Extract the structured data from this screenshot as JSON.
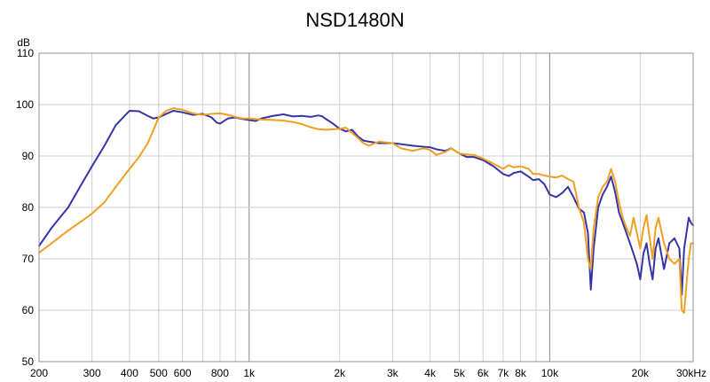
{
  "chart_data": {
    "type": "line",
    "title": "NSD1480N",
    "ylabel": "dB",
    "xlabel": "",
    "x_scale": "log",
    "xlim": [
      200,
      30000
    ],
    "ylim": [
      50,
      110
    ],
    "grid": true,
    "x_ticks": [
      {
        "value": 200,
        "label": "200"
      },
      {
        "value": 300,
        "label": "300"
      },
      {
        "value": 400,
        "label": "400"
      },
      {
        "value": 500,
        "label": "500"
      },
      {
        "value": 600,
        "label": "600"
      },
      {
        "value": 800,
        "label": "800"
      },
      {
        "value": 1000,
        "label": "1k"
      },
      {
        "value": 2000,
        "label": "2k"
      },
      {
        "value": 3000,
        "label": "3k"
      },
      {
        "value": 4000,
        "label": "4k"
      },
      {
        "value": 5000,
        "label": "5k"
      },
      {
        "value": 6000,
        "label": "6k"
      },
      {
        "value": 7000,
        "label": "7k"
      },
      {
        "value": 8000,
        "label": "8k"
      },
      {
        "value": 10000,
        "label": "10k"
      },
      {
        "value": 20000,
        "label": "20k"
      },
      {
        "value": 30000,
        "label": "30kHz"
      }
    ],
    "y_ticks": [
      50,
      60,
      70,
      80,
      90,
      100,
      110
    ],
    "series": [
      {
        "color": "#3535a8",
        "points": [
          [
            200,
            72.5
          ],
          [
            220,
            76
          ],
          [
            250,
            80
          ],
          [
            280,
            85
          ],
          [
            300,
            88
          ],
          [
            330,
            92
          ],
          [
            360,
            96
          ],
          [
            400,
            98.8
          ],
          [
            430,
            98.7
          ],
          [
            460,
            97.8
          ],
          [
            480,
            97.3
          ],
          [
            500,
            97.5
          ],
          [
            530,
            98.2
          ],
          [
            560,
            98.8
          ],
          [
            600,
            98.5
          ],
          [
            650,
            98
          ],
          [
            700,
            98.2
          ],
          [
            750,
            97.5
          ],
          [
            780,
            96.5
          ],
          [
            800,
            96.3
          ],
          [
            850,
            97.3
          ],
          [
            900,
            97.5
          ],
          [
            950,
            97.2
          ],
          [
            1000,
            97
          ],
          [
            1050,
            96.8
          ],
          [
            1100,
            97.3
          ],
          [
            1200,
            97.8
          ],
          [
            1300,
            98.1
          ],
          [
            1400,
            97.7
          ],
          [
            1500,
            97.8
          ],
          [
            1600,
            97.6
          ],
          [
            1700,
            97.9
          ],
          [
            1750,
            97.7
          ],
          [
            1800,
            97.2
          ],
          [
            1900,
            96.3
          ],
          [
            2000,
            95.3
          ],
          [
            2100,
            94.8
          ],
          [
            2200,
            95.1
          ],
          [
            2300,
            93.8
          ],
          [
            2400,
            93
          ],
          [
            2500,
            92.8
          ],
          [
            2700,
            92.5
          ],
          [
            3000,
            92.5
          ],
          [
            3200,
            92.3
          ],
          [
            3500,
            92
          ],
          [
            3800,
            91.8
          ],
          [
            4000,
            91.7
          ],
          [
            4200,
            91.3
          ],
          [
            4500,
            91
          ],
          [
            4700,
            91.5
          ],
          [
            5000,
            90.5
          ],
          [
            5300,
            89.8
          ],
          [
            5600,
            89.8
          ],
          [
            6000,
            89.2
          ],
          [
            6500,
            88
          ],
          [
            7000,
            86.5
          ],
          [
            7300,
            86.1
          ],
          [
            7600,
            86.7
          ],
          [
            8000,
            87
          ],
          [
            8500,
            86
          ],
          [
            8800,
            85.3
          ],
          [
            9200,
            85.5
          ],
          [
            9600,
            84.5
          ],
          [
            10000,
            82.5
          ],
          [
            10500,
            82
          ],
          [
            11000,
            82.8
          ],
          [
            11500,
            84
          ],
          [
            12000,
            82
          ],
          [
            12500,
            79.8
          ],
          [
            13000,
            79
          ],
          [
            13400,
            75
          ],
          [
            13700,
            64
          ],
          [
            14000,
            72
          ],
          [
            14500,
            80
          ],
          [
            15000,
            82.5
          ],
          [
            15500,
            84
          ],
          [
            16000,
            86
          ],
          [
            16500,
            83
          ],
          [
            17000,
            79
          ],
          [
            17500,
            77
          ],
          [
            18000,
            75
          ],
          [
            18500,
            73
          ],
          [
            19000,
            71
          ],
          [
            19500,
            69
          ],
          [
            20000,
            66
          ],
          [
            20500,
            71
          ],
          [
            21000,
            73
          ],
          [
            21500,
            69
          ],
          [
            22000,
            66
          ],
          [
            22500,
            72
          ],
          [
            23000,
            74
          ],
          [
            24000,
            68
          ],
          [
            25000,
            73
          ],
          [
            26000,
            74
          ],
          [
            27000,
            72
          ],
          [
            27500,
            63
          ],
          [
            28000,
            72
          ],
          [
            28500,
            75
          ],
          [
            29000,
            78
          ],
          [
            29500,
            77
          ],
          [
            30000,
            76.5
          ]
        ]
      },
      {
        "color": "#f0a020",
        "points": [
          [
            200,
            71.2
          ],
          [
            220,
            73
          ],
          [
            250,
            75.5
          ],
          [
            280,
            77.5
          ],
          [
            300,
            78.8
          ],
          [
            330,
            81
          ],
          [
            360,
            84
          ],
          [
            400,
            87.5
          ],
          [
            430,
            89.8
          ],
          [
            460,
            92.5
          ],
          [
            480,
            95
          ],
          [
            500,
            97.5
          ],
          [
            530,
            98.8
          ],
          [
            560,
            99.3
          ],
          [
            600,
            99
          ],
          [
            650,
            98.3
          ],
          [
            700,
            98
          ],
          [
            750,
            98.2
          ],
          [
            800,
            98.3
          ],
          [
            850,
            98
          ],
          [
            900,
            97.6
          ],
          [
            950,
            97.3
          ],
          [
            1000,
            97.3
          ],
          [
            1100,
            97.1
          ],
          [
            1200,
            97
          ],
          [
            1300,
            96.9
          ],
          [
            1400,
            96.6
          ],
          [
            1500,
            96.2
          ],
          [
            1600,
            95.6
          ],
          [
            1700,
            95.2
          ],
          [
            1800,
            95.1
          ],
          [
            1900,
            95.2
          ],
          [
            2000,
            95.3
          ],
          [
            2100,
            95.5
          ],
          [
            2200,
            94.5
          ],
          [
            2300,
            93.5
          ],
          [
            2400,
            92.5
          ],
          [
            2500,
            92
          ],
          [
            2700,
            92.8
          ],
          [
            3000,
            92.5
          ],
          [
            3200,
            91.5
          ],
          [
            3500,
            91
          ],
          [
            3800,
            91.5
          ],
          [
            4000,
            91.2
          ],
          [
            4200,
            90.2
          ],
          [
            4500,
            90.8
          ],
          [
            4700,
            91.5
          ],
          [
            5000,
            90.5
          ],
          [
            5300,
            90.3
          ],
          [
            5600,
            90.2
          ],
          [
            6000,
            89.5
          ],
          [
            6500,
            88.5
          ],
          [
            7000,
            87.5
          ],
          [
            7300,
            88.2
          ],
          [
            7600,
            87.8
          ],
          [
            8000,
            88
          ],
          [
            8500,
            87.5
          ],
          [
            8800,
            86.5
          ],
          [
            9200,
            86.5
          ],
          [
            9600,
            86.2
          ],
          [
            10000,
            86
          ],
          [
            10500,
            85.8
          ],
          [
            11000,
            86.2
          ],
          [
            11500,
            85.5
          ],
          [
            12000,
            85
          ],
          [
            12500,
            80
          ],
          [
            13000,
            77
          ],
          [
            13400,
            70
          ],
          [
            13700,
            68
          ],
          [
            14000,
            76
          ],
          [
            14500,
            82
          ],
          [
            15000,
            84
          ],
          [
            15500,
            85
          ],
          [
            16000,
            87.5
          ],
          [
            16500,
            85
          ],
          [
            17000,
            81
          ],
          [
            17500,
            78
          ],
          [
            18000,
            76
          ],
          [
            18500,
            74.5
          ],
          [
            19000,
            78
          ],
          [
            19500,
            75
          ],
          [
            20000,
            72
          ],
          [
            20500,
            76
          ],
          [
            21000,
            78.5
          ],
          [
            21500,
            74
          ],
          [
            22000,
            70
          ],
          [
            22500,
            76
          ],
          [
            23000,
            78
          ],
          [
            24000,
            73
          ],
          [
            25000,
            70
          ],
          [
            26000,
            69
          ],
          [
            27000,
            70
          ],
          [
            27500,
            60
          ],
          [
            28000,
            59.5
          ],
          [
            28500,
            65
          ],
          [
            29000,
            70
          ],
          [
            29500,
            73
          ],
          [
            30000,
            73
          ]
        ]
      }
    ]
  }
}
